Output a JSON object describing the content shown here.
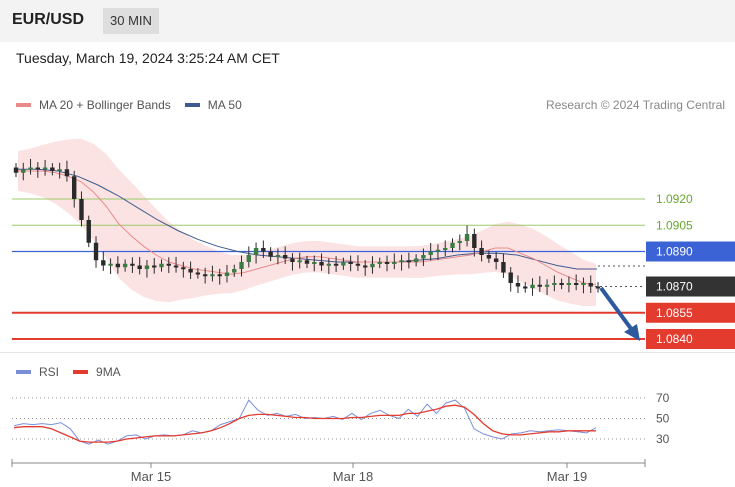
{
  "header": {
    "symbol": "EUR/USD",
    "timeframe": "30 MIN",
    "datetime": "Tuesday, March 19, 2024 3:25:24 AM CET"
  },
  "legend": {
    "ma20": "MA 20 + Bollinger Bands",
    "ma50": "MA 50",
    "credit": "Research © 2024 Trading Central"
  },
  "rsi_legend": {
    "rsi": "RSI",
    "ma9": "9MA"
  },
  "colors": {
    "ma20": "#e98b8b",
    "band": "#fbdcdc",
    "ma50": "#3f5a8f",
    "resistance": "#9cc86a",
    "pivot": "#3b63d6",
    "support": "#e33b2e",
    "current": "#333333",
    "rsi": "#7b8fd9",
    "arrow": "#2d5a9e"
  },
  "chart_data": [
    {
      "type": "candlestick",
      "x_ticks": [
        "Mar 15",
        "Mar 18",
        "Mar 19"
      ],
      "levels": [
        {
          "label": "1.0920",
          "value": 1.092,
          "kind": "resistance"
        },
        {
          "label": "1.0905",
          "value": 1.0905,
          "kind": "resistance"
        },
        {
          "label": "1.0890",
          "value": 1.089,
          "kind": "pivot"
        },
        {
          "label": "1.0870",
          "value": 1.087,
          "kind": "current"
        },
        {
          "label": "1.0855",
          "value": 1.0855,
          "kind": "support"
        },
        {
          "label": "1.0840",
          "value": 1.084,
          "kind": "support"
        }
      ],
      "close_series": [
        1.0935,
        1.0937,
        1.0938,
        1.0937,
        1.0938,
        1.0936,
        1.0937,
        1.0933,
        1.092,
        1.0908,
        1.0895,
        1.0885,
        1.0882,
        1.0883,
        1.0881,
        1.0883,
        1.0882,
        1.088,
        1.0882,
        1.0881,
        1.0883,
        1.0882,
        1.0881,
        1.088,
        1.0878,
        1.0877,
        1.0876,
        1.0877,
        1.0876,
        1.0878,
        1.088,
        1.0884,
        1.0888,
        1.0892,
        1.089,
        1.0887,
        1.0888,
        1.0886,
        1.0884,
        1.0885,
        1.0883,
        1.0884,
        1.0882,
        1.0883,
        1.0882,
        1.0884,
        1.0883,
        1.0882,
        1.0881,
        1.0883,
        1.0884,
        1.0883,
        1.0884,
        1.0885,
        1.0884,
        1.0886,
        1.0888,
        1.089,
        1.0891,
        1.0892,
        1.0895,
        1.0896,
        1.09,
        1.0892,
        1.0888,
        1.0886,
        1.0884,
        1.0878,
        1.0872,
        1.087,
        1.0869,
        1.0871,
        1.087,
        1.0871,
        1.0872,
        1.0871,
        1.0872,
        1.0871,
        1.0872,
        1.087,
        1.0869
      ],
      "ma20": [
        1.0936,
        1.0936,
        1.0936,
        1.0935,
        1.0933,
        1.093,
        1.0924,
        1.0916,
        1.0906,
        1.0899,
        1.0893,
        1.0888,
        1.0884,
        1.0882,
        1.088,
        1.0879,
        1.0878,
        1.0877,
        1.0878,
        1.088,
        1.0882,
        1.0884,
        1.0886,
        1.0887,
        1.0887,
        1.0886,
        1.0885,
        1.0884,
        1.0884,
        1.0884,
        1.0884,
        1.0884,
        1.0884,
        1.0885,
        1.0886,
        1.0887,
        1.0888,
        1.089,
        1.0892,
        1.0892,
        1.0889,
        1.0886,
        1.0882,
        1.0878,
        1.0875,
        1.0872,
        1.0871
      ],
      "ma50": [
        1.0937,
        1.0937,
        1.0936,
        1.0933,
        1.0928,
        1.0922,
        1.0915,
        1.0908,
        1.0902,
        1.0897,
        1.0893,
        1.089,
        1.0888,
        1.0887,
        1.0886,
        1.0885,
        1.0884,
        1.0884,
        1.0884,
        1.0884,
        1.0885,
        1.0886,
        1.0888,
        1.0889,
        1.0889,
        1.0888,
        1.0885,
        1.0882,
        1.088,
        1.088
      ]
    },
    {
      "type": "line",
      "title": "RSI",
      "y_ticks": [
        "70",
        "50",
        "30"
      ],
      "ylim": [
        20,
        80
      ],
      "series": [
        {
          "name": "RSI",
          "values": [
            43,
            45,
            44,
            45,
            44,
            46,
            40,
            28,
            25,
            29,
            25,
            28,
            33,
            34,
            30,
            33,
            34,
            33,
            34,
            38,
            36,
            38,
            44,
            47,
            50,
            68,
            58,
            53,
            55,
            52,
            54,
            50,
            51,
            50,
            52,
            49,
            55,
            49,
            55,
            58,
            53,
            50,
            59,
            52,
            64,
            55,
            65,
            68,
            60,
            40,
            35,
            32,
            30,
            35,
            36,
            38,
            37,
            38,
            39,
            38,
            37,
            36,
            41
          ]
        },
        {
          "name": "9MA",
          "values": [
            41,
            42,
            42,
            42,
            40,
            36,
            32,
            28,
            27,
            27,
            27,
            28,
            30,
            31,
            32,
            33,
            33,
            33,
            34,
            35,
            36,
            38,
            41,
            45,
            50,
            53,
            54,
            54,
            53,
            52,
            51,
            51,
            50,
            50,
            50,
            50,
            51,
            51,
            52,
            53,
            53,
            53,
            55,
            55,
            57,
            59,
            62,
            63,
            61,
            54,
            45,
            38,
            35,
            34,
            34,
            35,
            36,
            37,
            37,
            38,
            38,
            38,
            38
          ]
        }
      ]
    }
  ]
}
